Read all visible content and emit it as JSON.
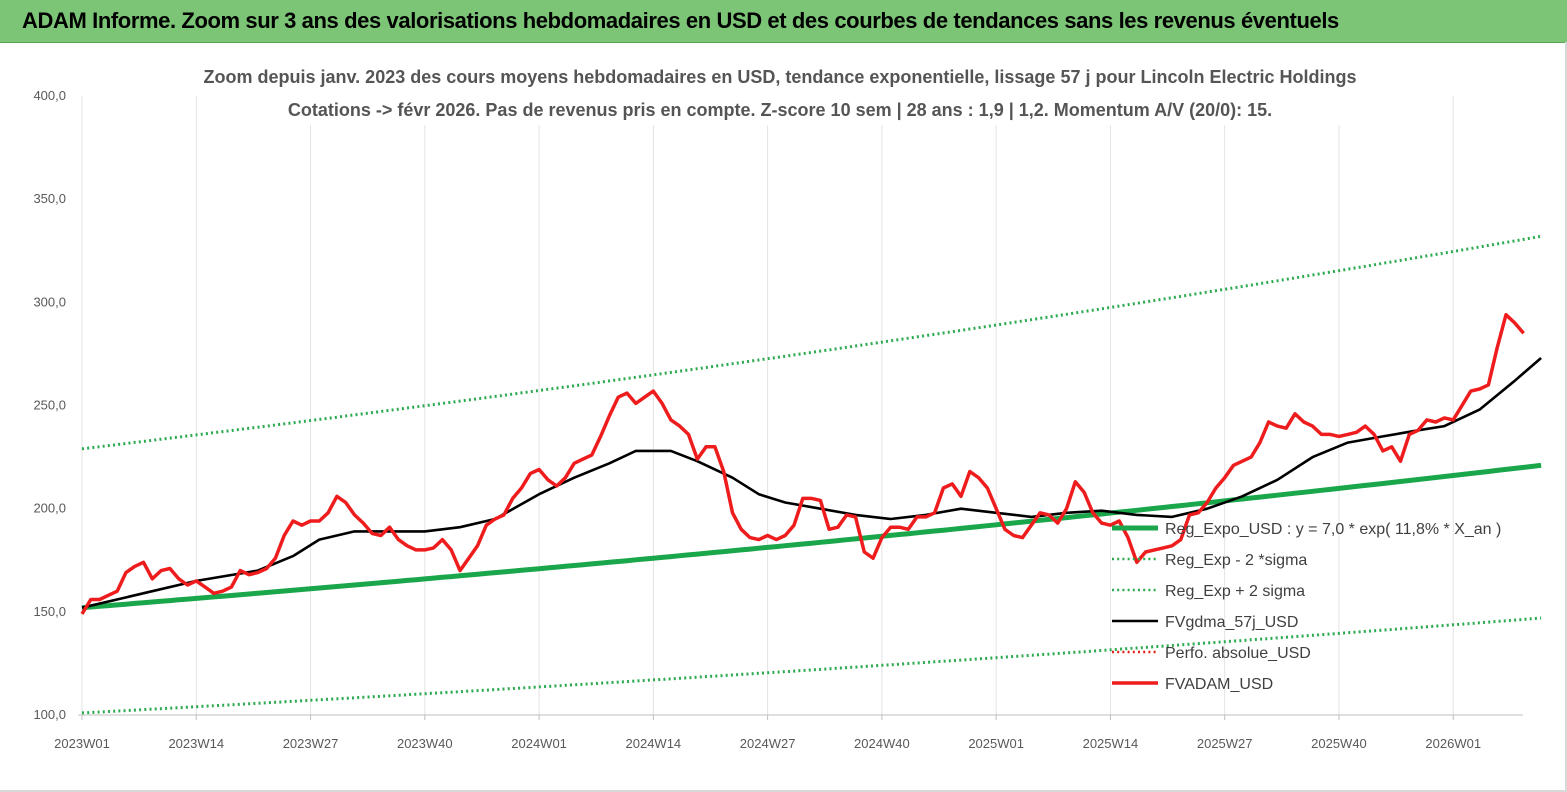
{
  "banner": {
    "title": "ADAM Informe. Zoom sur 3 ans des valorisations hebdomadaires en USD et des courbes de tendances sans les revenus éventuels"
  },
  "colors": {
    "banner_bg": "#7cc576",
    "reg_expo": "#1aa64a",
    "reg_band": "#2daa50",
    "fvgdma": "#000000",
    "perfo": "#e0201c",
    "fvadam": "#ee1c1c"
  },
  "chart_data": {
    "type": "line",
    "title": "Zoom depuis janv. 2023 des cours moyens hebdomadaires en USD, tendance exponentielle, lissage 57 j pour Lincoln Electric Holdings",
    "subtitle": "Cotations -> févr 2026.  Pas de revenus pris en compte. Z-score 10 sem  | 28 ans : 1,9  | 1,2. Momentum A/V (20/0): 15.",
    "xlabel": "",
    "ylabel": "",
    "ylim": [
      100,
      400
    ],
    "yticks": [
      "100,0",
      "150,0",
      "200,0",
      "250,0",
      "300,0",
      "350,0",
      "400,0"
    ],
    "xticks": [
      "2023W01",
      "2023W14",
      "2023W27",
      "2023W40",
      "2024W01",
      "2024W14",
      "2024W27",
      "2024W40",
      "2025W01",
      "2025W14",
      "2025W27",
      "2025W40",
      "2026W01"
    ],
    "grid": "vertical",
    "legend_position": "bottom-right",
    "x_weeks_total": 167,
    "series": [
      {
        "name": "Reg_Expo_USD : y = 7,0 * exp( 11,8% *  X_an )",
        "style": "thick-solid",
        "color": "#1aa64a",
        "points": [
          [
            0,
            152
          ],
          [
            166,
            221
          ]
        ]
      },
      {
        "name": "Reg_Exp - 2 *sigma",
        "style": "dotted",
        "color": "#2daa50",
        "points": [
          [
            0,
            101
          ],
          [
            166,
            147
          ]
        ]
      },
      {
        "name": "Reg_Exp + 2 sigma",
        "style": "dotted",
        "color": "#2daa50",
        "points": [
          [
            0,
            229
          ],
          [
            166,
            332
          ]
        ]
      },
      {
        "name": "FVgdma_57j_USD",
        "style": "solid",
        "color": "#000000",
        "points": [
          [
            0,
            152
          ],
          [
            8,
            160
          ],
          [
            13,
            165
          ],
          [
            20,
            170
          ],
          [
            24,
            177
          ],
          [
            27,
            185
          ],
          [
            31,
            189
          ],
          [
            35,
            189
          ],
          [
            39,
            189
          ],
          [
            43,
            191
          ],
          [
            47,
            195
          ],
          [
            52,
            207
          ],
          [
            56,
            215
          ],
          [
            60,
            222
          ],
          [
            63,
            228
          ],
          [
            67,
            228
          ],
          [
            70,
            223
          ],
          [
            74,
            215
          ],
          [
            77,
            207
          ],
          [
            80,
            203
          ],
          [
            84,
            200
          ],
          [
            88,
            197
          ],
          [
            92,
            195
          ],
          [
            96,
            197
          ],
          [
            100,
            200
          ],
          [
            104,
            198
          ],
          [
            108,
            196
          ],
          [
            112,
            198
          ],
          [
            116,
            199
          ],
          [
            120,
            197
          ],
          [
            124,
            196
          ],
          [
            128,
            200
          ],
          [
            132,
            206
          ],
          [
            136,
            214
          ],
          [
            140,
            225
          ],
          [
            144,
            232
          ],
          [
            148,
            235
          ],
          [
            152,
            238
          ],
          [
            155,
            240
          ],
          [
            159,
            248
          ],
          [
            163,
            262
          ],
          [
            166,
            273
          ]
        ]
      },
      {
        "name": "Perfo. absolue_USD",
        "style": "dotted",
        "color": "#e0201c",
        "points": []
      },
      {
        "name": "FVADAM_USD",
        "style": "thick-solid",
        "color": "#ee1c1c",
        "points": [
          [
            0,
            149
          ],
          [
            1,
            156
          ],
          [
            2,
            156
          ],
          [
            3,
            158
          ],
          [
            4,
            160
          ],
          [
            5,
            169
          ],
          [
            6,
            172
          ],
          [
            7,
            174
          ],
          [
            8,
            166
          ],
          [
            9,
            170
          ],
          [
            10,
            171
          ],
          [
            11,
            166
          ],
          [
            12,
            163
          ],
          [
            13,
            165
          ],
          [
            14,
            162
          ],
          [
            15,
            159
          ],
          [
            16,
            160
          ],
          [
            17,
            162
          ],
          [
            18,
            170
          ],
          [
            19,
            168
          ],
          [
            20,
            169
          ],
          [
            21,
            171
          ],
          [
            22,
            176
          ],
          [
            23,
            187
          ],
          [
            24,
            194
          ],
          [
            25,
            192
          ],
          [
            26,
            194
          ],
          [
            27,
            194
          ],
          [
            28,
            198
          ],
          [
            29,
            206
          ],
          [
            30,
            203
          ],
          [
            31,
            197
          ],
          [
            32,
            193
          ],
          [
            33,
            188
          ],
          [
            34,
            187
          ],
          [
            35,
            191
          ],
          [
            36,
            185
          ],
          [
            37,
            182
          ],
          [
            38,
            180
          ],
          [
            39,
            180
          ],
          [
            40,
            181
          ],
          [
            41,
            185
          ],
          [
            42,
            180
          ],
          [
            43,
            170
          ],
          [
            44,
            176
          ],
          [
            45,
            182
          ],
          [
            46,
            192
          ],
          [
            47,
            195
          ],
          [
            48,
            197
          ],
          [
            49,
            205
          ],
          [
            50,
            210
          ],
          [
            51,
            217
          ],
          [
            52,
            219
          ],
          [
            53,
            214
          ],
          [
            54,
            211
          ],
          [
            55,
            215
          ],
          [
            56,
            222
          ],
          [
            57,
            224
          ],
          [
            58,
            226
          ],
          [
            59,
            235
          ],
          [
            60,
            245
          ],
          [
            61,
            254
          ],
          [
            62,
            256
          ],
          [
            63,
            251
          ],
          [
            64,
            254
          ],
          [
            65,
            257
          ],
          [
            66,
            251
          ],
          [
            67,
            243
          ],
          [
            68,
            240
          ],
          [
            69,
            236
          ],
          [
            70,
            224
          ],
          [
            71,
            230
          ],
          [
            72,
            230
          ],
          [
            73,
            218
          ],
          [
            74,
            198
          ],
          [
            75,
            190
          ],
          [
            76,
            186
          ],
          [
            77,
            185
          ],
          [
            78,
            187
          ],
          [
            79,
            185
          ],
          [
            80,
            187
          ],
          [
            81,
            192
          ],
          [
            82,
            205
          ],
          [
            83,
            205
          ],
          [
            84,
            204
          ],
          [
            85,
            190
          ],
          [
            86,
            191
          ],
          [
            87,
            197
          ],
          [
            88,
            196
          ],
          [
            89,
            179
          ],
          [
            90,
            176
          ],
          [
            91,
            186
          ],
          [
            92,
            191
          ],
          [
            93,
            191
          ],
          [
            94,
            190
          ],
          [
            95,
            196
          ],
          [
            96,
            196
          ],
          [
            97,
            198
          ],
          [
            98,
            210
          ],
          [
            99,
            212
          ],
          [
            100,
            206
          ],
          [
            101,
            218
          ],
          [
            102,
            215
          ],
          [
            103,
            210
          ],
          [
            104,
            200
          ],
          [
            105,
            190
          ],
          [
            106,
            187
          ],
          [
            107,
            186
          ],
          [
            108,
            192
          ],
          [
            109,
            198
          ],
          [
            110,
            197
          ],
          [
            111,
            193
          ],
          [
            112,
            200
          ],
          [
            113,
            213
          ],
          [
            114,
            208
          ],
          [
            115,
            198
          ],
          [
            116,
            193
          ],
          [
            117,
            192
          ],
          [
            118,
            194
          ],
          [
            119,
            186
          ],
          [
            120,
            174
          ],
          [
            121,
            179
          ],
          [
            122,
            180
          ],
          [
            123,
            181
          ],
          [
            124,
            182
          ],
          [
            125,
            185
          ],
          [
            126,
            197
          ],
          [
            127,
            198
          ],
          [
            128,
            203
          ],
          [
            129,
            210
          ],
          [
            130,
            215
          ],
          [
            131,
            221
          ],
          [
            132,
            223
          ],
          [
            133,
            225
          ],
          [
            134,
            232
          ],
          [
            135,
            242
          ],
          [
            136,
            240
          ],
          [
            137,
            239
          ],
          [
            138,
            246
          ],
          [
            139,
            242
          ],
          [
            140,
            240
          ],
          [
            141,
            236
          ],
          [
            142,
            236
          ],
          [
            143,
            235
          ],
          [
            144,
            236
          ],
          [
            145,
            237
          ],
          [
            146,
            240
          ],
          [
            147,
            236
          ],
          [
            148,
            228
          ],
          [
            149,
            230
          ],
          [
            150,
            223
          ],
          [
            151,
            236
          ],
          [
            152,
            238
          ],
          [
            153,
            243
          ],
          [
            154,
            242
          ],
          [
            155,
            244
          ],
          [
            156,
            243
          ],
          [
            157,
            250
          ],
          [
            158,
            257
          ],
          [
            159,
            258
          ],
          [
            160,
            260
          ],
          [
            161,
            278
          ],
          [
            162,
            294
          ],
          [
            163,
            290
          ],
          [
            164,
            285
          ]
        ]
      }
    ]
  }
}
